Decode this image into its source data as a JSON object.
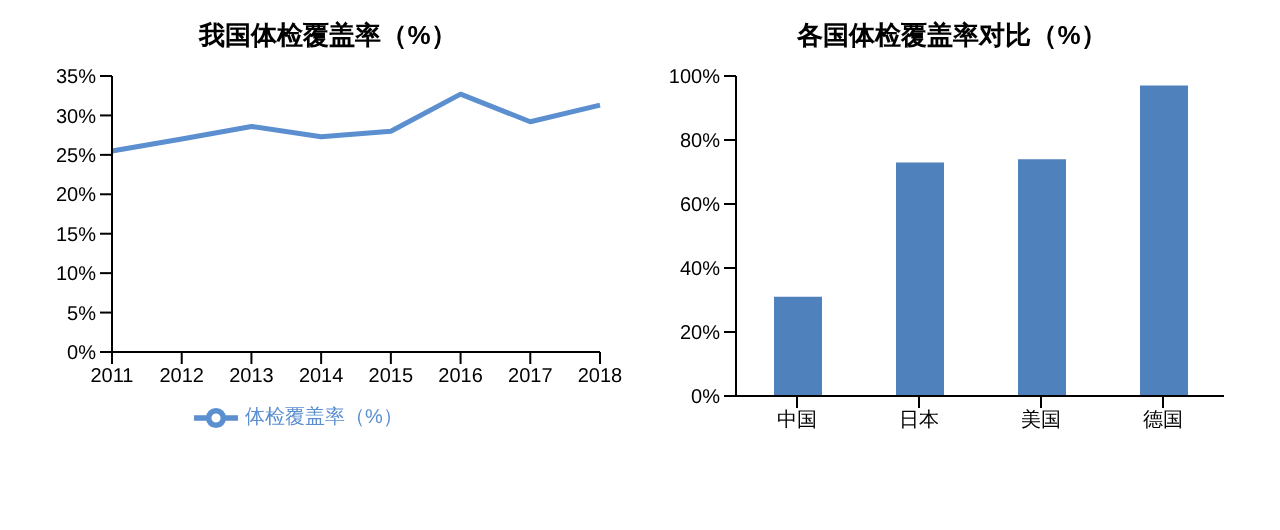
{
  "chart_data": [
    {
      "type": "line",
      "title": "我国体检覆盖率（%）",
      "categories": [
        "2011",
        "2012",
        "2013",
        "2014",
        "2015",
        "2016",
        "2017",
        "2018"
      ],
      "series": [
        {
          "name": "体检覆盖率（%）",
          "color": "#5b8fd0",
          "values": [
            25.5,
            27.0,
            28.6,
            27.3,
            28.0,
            32.7,
            29.2,
            31.3
          ]
        }
      ],
      "ylim": [
        0,
        35
      ],
      "yticks": [
        {
          "value": 0,
          "label": "0%"
        },
        {
          "value": 5,
          "label": "5%"
        },
        {
          "value": 10,
          "label": "10%"
        },
        {
          "value": 15,
          "label": "15%"
        },
        {
          "value": 20,
          "label": "20%"
        },
        {
          "value": 25,
          "label": "25%"
        },
        {
          "value": 30,
          "label": "30%"
        },
        {
          "value": 35,
          "label": "35%"
        }
      ],
      "grid": false,
      "legend": "bottom",
      "marker": "none",
      "line_style": "solid"
    },
    {
      "type": "bar",
      "title": "各国体检覆盖率对比（%）",
      "categories": [
        "中国",
        "日本",
        "美国",
        "德国"
      ],
      "values": [
        31,
        73,
        74,
        97
      ],
      "color": "#4f81bd",
      "ylim": [
        0,
        100
      ],
      "yticks": [
        {
          "value": 0,
          "label": "0%"
        },
        {
          "value": 20,
          "label": "20%"
        },
        {
          "value": 40,
          "label": "40%"
        },
        {
          "value": 60,
          "label": "60%"
        },
        {
          "value": 80,
          "label": "80%"
        },
        {
          "value": 100,
          "label": "100%"
        }
      ],
      "grid": false,
      "legend": false
    }
  ]
}
